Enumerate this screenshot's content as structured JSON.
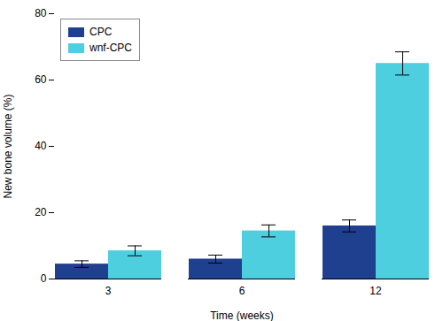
{
  "chart_data": {
    "type": "bar",
    "categories": [
      "3",
      "6",
      "12"
    ],
    "series": [
      {
        "name": "CPC",
        "color": "#1f3f8f",
        "values": [
          4.5,
          6.0,
          16.0
        ],
        "errors": [
          1.0,
          1.2,
          1.8
        ]
      },
      {
        "name": "wnf-CPC",
        "color": "#4dcfe0",
        "values": [
          8.5,
          14.5,
          65.0
        ],
        "errors": [
          1.5,
          1.8,
          3.5
        ]
      }
    ],
    "xlabel": "Time (weeks)",
    "ylabel": "New bone volume (%)",
    "ylim": [
      0,
      80
    ],
    "yticks": [
      0,
      20,
      40,
      60,
      80
    ],
    "legend": "upper left",
    "grid": false
  }
}
